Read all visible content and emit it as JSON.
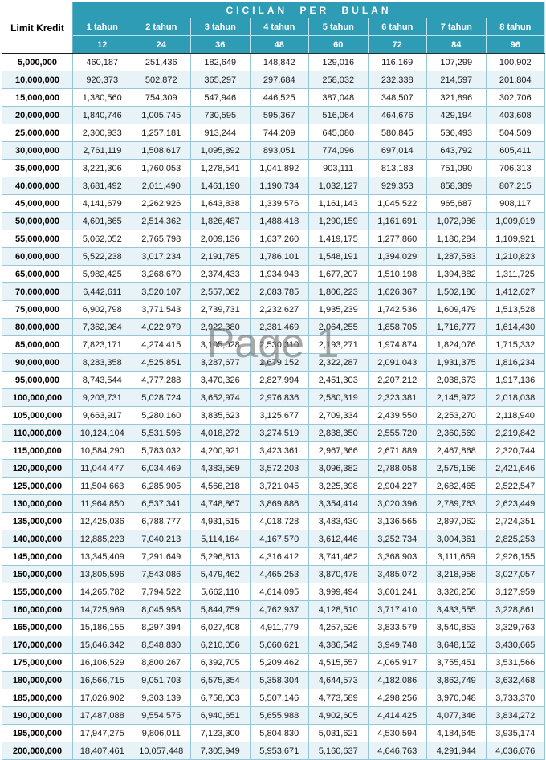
{
  "table": {
    "title": "CICILAN PER BULAN",
    "limit_header": "Limit Kredit",
    "year_headers": [
      "1 tahun",
      "2 tahun",
      "3 tahun",
      "4 tahun",
      "5 tahun",
      "6 tahun",
      "7 tahun",
      "8 tahun"
    ],
    "month_headers": [
      "12",
      "24",
      "36",
      "48",
      "60",
      "72",
      "84",
      "96"
    ],
    "rows": [
      {
        "limit": "5,000,000",
        "values": [
          "460,187",
          "251,436",
          "182,649",
          "148,842",
          "129,016",
          "116,169",
          "107,299",
          "100,902"
        ]
      },
      {
        "limit": "10,000,000",
        "values": [
          "920,373",
          "502,872",
          "365,297",
          "297,684",
          "258,032",
          "232,338",
          "214,597",
          "201,804"
        ]
      },
      {
        "limit": "15,000,000",
        "values": [
          "1,380,560",
          "754,309",
          "547,946",
          "446,525",
          "387,048",
          "348,507",
          "321,896",
          "302,706"
        ]
      },
      {
        "limit": "20,000,000",
        "values": [
          "1,840,746",
          "1,005,745",
          "730,595",
          "595,367",
          "516,064",
          "464,676",
          "429,194",
          "403,608"
        ]
      },
      {
        "limit": "25,000,000",
        "values": [
          "2,300,933",
          "1,257,181",
          "913,244",
          "744,209",
          "645,080",
          "580,845",
          "536,493",
          "504,509"
        ]
      },
      {
        "limit": "30,000,000",
        "values": [
          "2,761,119",
          "1,508,617",
          "1,095,892",
          "893,051",
          "774,096",
          "697,014",
          "643,792",
          "605,411"
        ]
      },
      {
        "limit": "35,000,000",
        "values": [
          "3,221,306",
          "1,760,053",
          "1,278,541",
          "1,041,892",
          "903,111",
          "813,183",
          "751,090",
          "706,313"
        ]
      },
      {
        "limit": "40,000,000",
        "values": [
          "3,681,492",
          "2,011,490",
          "1,461,190",
          "1,190,734",
          "1,032,127",
          "929,353",
          "858,389",
          "807,215"
        ]
      },
      {
        "limit": "45,000,000",
        "values": [
          "4,141,679",
          "2,262,926",
          "1,643,838",
          "1,339,576",
          "1,161,143",
          "1,045,522",
          "965,687",
          "908,117"
        ]
      },
      {
        "limit": "50,000,000",
        "values": [
          "4,601,865",
          "2,514,362",
          "1,826,487",
          "1,488,418",
          "1,290,159",
          "1,161,691",
          "1,072,986",
          "1,009,019"
        ]
      },
      {
        "limit": "55,000,000",
        "values": [
          "5,062,052",
          "2,765,798",
          "2,009,136",
          "1,637,260",
          "1,419,175",
          "1,277,860",
          "1,180,284",
          "1,109,921"
        ]
      },
      {
        "limit": "60,000,000",
        "values": [
          "5,522,238",
          "3,017,234",
          "2,191,785",
          "1,786,101",
          "1,548,191",
          "1,394,029",
          "1,287,583",
          "1,210,823"
        ]
      },
      {
        "limit": "65,000,000",
        "values": [
          "5,982,425",
          "3,268,670",
          "2,374,433",
          "1,934,943",
          "1,677,207",
          "1,510,198",
          "1,394,882",
          "1,311,725"
        ]
      },
      {
        "limit": "70,000,000",
        "values": [
          "6,442,611",
          "3,520,107",
          "2,557,082",
          "2,083,785",
          "1,806,223",
          "1,626,367",
          "1,502,180",
          "1,412,627"
        ]
      },
      {
        "limit": "75,000,000",
        "values": [
          "6,902,798",
          "3,771,543",
          "2,739,731",
          "2,232,627",
          "1,935,239",
          "1,742,536",
          "1,609,479",
          "1,513,528"
        ]
      },
      {
        "limit": "80,000,000",
        "values": [
          "7,362,984",
          "4,022,979",
          "2,922,380",
          "2,381,469",
          "2,064,255",
          "1,858,705",
          "1,716,777",
          "1,614,430"
        ]
      },
      {
        "limit": "85,000,000",
        "values": [
          "7,823,171",
          "4,274,415",
          "3,105,028",
          "2,530,310",
          "2,193,271",
          "1,974,874",
          "1,824,076",
          "1,715,332"
        ]
      },
      {
        "limit": "90,000,000",
        "values": [
          "8,283,358",
          "4,525,851",
          "3,287,677",
          "2,679,152",
          "2,322,287",
          "2,091,043",
          "1,931,375",
          "1,816,234"
        ]
      },
      {
        "limit": "95,000,000",
        "values": [
          "8,743,544",
          "4,777,288",
          "3,470,326",
          "2,827,994",
          "2,451,303",
          "2,207,212",
          "2,038,673",
          "1,917,136"
        ]
      },
      {
        "limit": "100,000,000",
        "values": [
          "9,203,731",
          "5,028,724",
          "3,652,974",
          "2,976,836",
          "2,580,319",
          "2,323,381",
          "2,145,972",
          "2,018,038"
        ]
      },
      {
        "limit": "105,000,000",
        "values": [
          "9,663,917",
          "5,280,160",
          "3,835,623",
          "3,125,677",
          "2,709,334",
          "2,439,550",
          "2,253,270",
          "2,118,940"
        ]
      },
      {
        "limit": "110,000,000",
        "values": [
          "10,124,104",
          "5,531,596",
          "4,018,272",
          "3,274,519",
          "2,838,350",
          "2,555,720",
          "2,360,569",
          "2,219,842"
        ]
      },
      {
        "limit": "115,000,000",
        "values": [
          "10,584,290",
          "5,783,032",
          "4,200,921",
          "3,423,361",
          "2,967,366",
          "2,671,889",
          "2,467,868",
          "2,320,744"
        ]
      },
      {
        "limit": "120,000,000",
        "values": [
          "11,044,477",
          "6,034,469",
          "4,383,569",
          "3,572,203",
          "3,096,382",
          "2,788,058",
          "2,575,166",
          "2,421,646"
        ]
      },
      {
        "limit": "125,000,000",
        "values": [
          "11,504,663",
          "6,285,905",
          "4,566,218",
          "3,721,045",
          "3,225,398",
          "2,904,227",
          "2,682,465",
          "2,522,547"
        ]
      },
      {
        "limit": "130,000,000",
        "values": [
          "11,964,850",
          "6,537,341",
          "4,748,867",
          "3,869,886",
          "3,354,414",
          "3,020,396",
          "2,789,763",
          "2,623,449"
        ]
      },
      {
        "limit": "135,000,000",
        "values": [
          "12,425,036",
          "6,788,777",
          "4,931,515",
          "4,018,728",
          "3,483,430",
          "3,136,565",
          "2,897,062",
          "2,724,351"
        ]
      },
      {
        "limit": "140,000,000",
        "values": [
          "12,885,223",
          "7,040,213",
          "5,114,164",
          "4,167,570",
          "3,612,446",
          "3,252,734",
          "3,004,361",
          "2,825,253"
        ]
      },
      {
        "limit": "145,000,000",
        "values": [
          "13,345,409",
          "7,291,649",
          "5,296,813",
          "4,316,412",
          "3,741,462",
          "3,368,903",
          "3,111,659",
          "2,926,155"
        ]
      },
      {
        "limit": "150,000,000",
        "values": [
          "13,805,596",
          "7,543,086",
          "5,479,462",
          "4,465,253",
          "3,870,478",
          "3,485,072",
          "3,218,958",
          "3,027,057"
        ]
      },
      {
        "limit": "155,000,000",
        "values": [
          "14,265,782",
          "7,794,522",
          "5,662,110",
          "4,614,095",
          "3,999,494",
          "3,601,241",
          "3,326,256",
          "3,127,959"
        ]
      },
      {
        "limit": "160,000,000",
        "values": [
          "14,725,969",
          "8,045,958",
          "5,844,759",
          "4,762,937",
          "4,128,510",
          "3,717,410",
          "3,433,555",
          "3,228,861"
        ]
      },
      {
        "limit": "165,000,000",
        "values": [
          "15,186,155",
          "8,297,394",
          "6,027,408",
          "4,911,779",
          "4,257,526",
          "3,833,579",
          "3,540,853",
          "3,329,763"
        ]
      },
      {
        "limit": "170,000,000",
        "values": [
          "15,646,342",
          "8,548,830",
          "6,210,056",
          "5,060,621",
          "4,386,542",
          "3,949,748",
          "3,648,152",
          "3,430,665"
        ]
      },
      {
        "limit": "175,000,000",
        "values": [
          "16,106,529",
          "8,800,267",
          "6,392,705",
          "5,209,462",
          "4,515,557",
          "4,065,917",
          "3,755,451",
          "3,531,566"
        ]
      },
      {
        "limit": "180,000,000",
        "values": [
          "16,566,715",
          "9,051,703",
          "6,575,354",
          "5,358,304",
          "4,644,573",
          "4,182,086",
          "3,862,749",
          "3,632,468"
        ]
      },
      {
        "limit": "185,000,000",
        "values": [
          "17,026,902",
          "9,303,139",
          "6,758,003",
          "5,507,146",
          "4,773,589",
          "4,298,256",
          "3,970,048",
          "3,733,370"
        ]
      },
      {
        "limit": "190,000,000",
        "values": [
          "17,487,088",
          "9,554,575",
          "6,940,651",
          "5,655,988",
          "4,902,605",
          "4,414,425",
          "4,077,346",
          "3,834,272"
        ]
      },
      {
        "limit": "195,000,000",
        "values": [
          "17,947,275",
          "9,806,011",
          "7,123,300",
          "5,804,830",
          "5,031,621",
          "4,530,594",
          "4,184,645",
          "3,935,174"
        ]
      },
      {
        "limit": "200,000,000",
        "values": [
          "18,407,461",
          "10,057,448",
          "7,305,949",
          "5,953,671",
          "5,160,637",
          "4,646,763",
          "4,291,944",
          "4,036,076"
        ]
      }
    ]
  },
  "watermark": "Page 1",
  "colors": {
    "header_bg": "#2e9cb5",
    "header_text": "#ffffff",
    "row_alt_bg": "#e8f3f8",
    "cell_border": "#96c6d8",
    "outer_border": "#1a1a1a",
    "watermark_text": "#737373"
  }
}
